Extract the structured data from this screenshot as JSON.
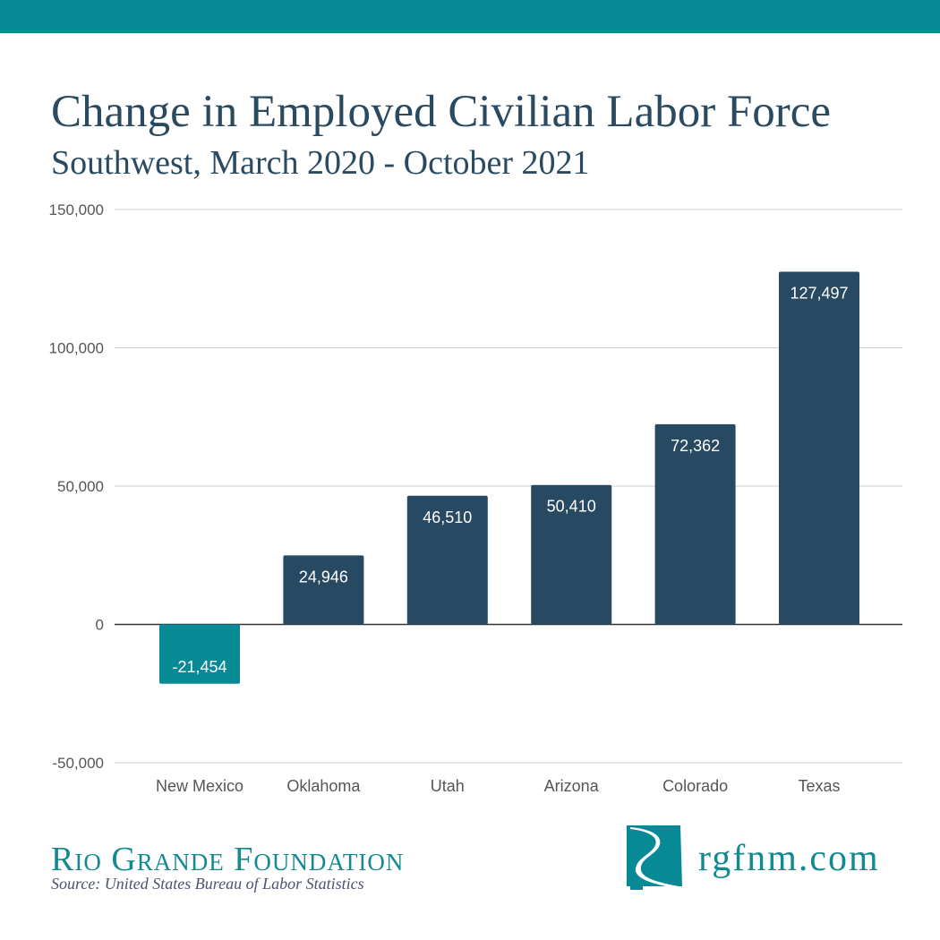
{
  "header": {
    "title": "Change in Employed Civilian Labor Force",
    "subtitle": "Southwest, March 2020 - October 2021"
  },
  "chart_data": {
    "type": "bar",
    "title": "Change in Employed Civilian Labor Force",
    "subtitle": "Southwest, March 2020 - October 2021",
    "categories": [
      "New Mexico",
      "Oklahoma",
      "Utah",
      "Arizona",
      "Colorado",
      "Texas"
    ],
    "values": [
      -21454,
      24946,
      46510,
      50410,
      72362,
      127497
    ],
    "data_labels": [
      "-21,454",
      "24,946",
      "46,510",
      "50,410",
      "72,362",
      "127,497"
    ],
    "ylim": [
      -50000,
      150000
    ],
    "yticks": [
      -50000,
      0,
      50000,
      100000,
      150000
    ],
    "ytick_labels": [
      "-50,000",
      "0",
      "50,000",
      "100,000",
      "150,000"
    ],
    "grid": true,
    "colors": {
      "positive": "#284962",
      "negative": "#078a96"
    }
  },
  "footer": {
    "brand": "Rio Grande Foundation",
    "source": "Source: United States Bureau of Labor Statistics",
    "website": "rgfnm.com"
  },
  "colors": {
    "accent": "#078a96",
    "title": "#2a4a62"
  }
}
